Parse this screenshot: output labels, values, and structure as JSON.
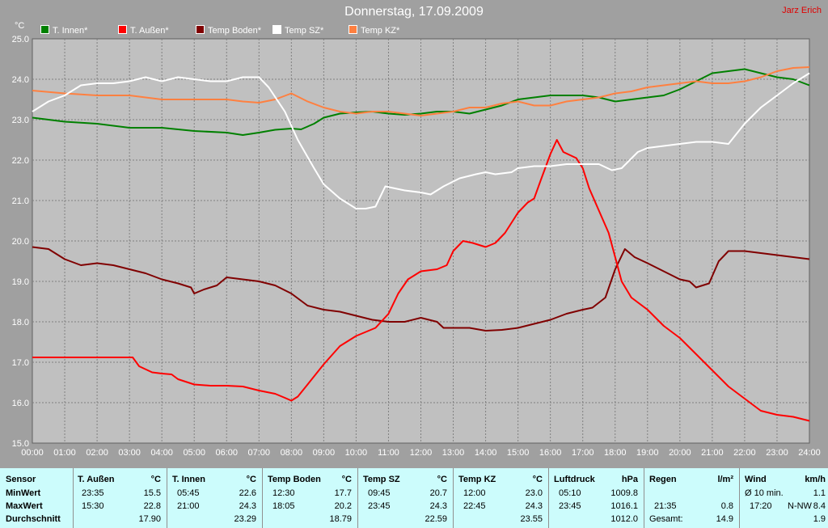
{
  "header": {
    "title": "Donnerstag, 17.09.2009",
    "author": "Jarz Erich",
    "y_unit": "°C"
  },
  "colors": {
    "background": "#a0a0a0",
    "plot_bg": "#c0c0c0",
    "grid": "#808080",
    "summary_bg": "#ccfcfc"
  },
  "chart_data": {
    "type": "line",
    "title": "Donnerstag, 17.09.2009",
    "ylabel": "°C",
    "ylim": [
      15.0,
      25.0
    ],
    "xlim": [
      "00:00",
      "24:00"
    ],
    "x_ticks": [
      "00:00",
      "01:00",
      "02:00",
      "03:00",
      "04:00",
      "05:00",
      "06:00",
      "07:00",
      "08:00",
      "09:00",
      "10:00",
      "11:00",
      "12:00",
      "13:00",
      "14:00",
      "15:00",
      "16:00",
      "17:00",
      "18:00",
      "19:00",
      "20:00",
      "21:00",
      "22:00",
      "23:00",
      "24:00"
    ],
    "y_ticks": [
      "15.0",
      "16.0",
      "17.0",
      "18.0",
      "19.0",
      "20.0",
      "21.0",
      "22.0",
      "23.0",
      "24.0",
      "25.0"
    ],
    "grid": true,
    "legend_position": "top-left",
    "series": [
      {
        "name": "T. Innen*",
        "color": "#008000",
        "points": [
          [
            0,
            23.05
          ],
          [
            1,
            22.95
          ],
          [
            2,
            22.9
          ],
          [
            3,
            22.8
          ],
          [
            4,
            22.8
          ],
          [
            5,
            22.72
          ],
          [
            6,
            22.68
          ],
          [
            6.5,
            22.62
          ],
          [
            7,
            22.68
          ],
          [
            7.5,
            22.75
          ],
          [
            8,
            22.78
          ],
          [
            8.3,
            22.76
          ],
          [
            8.7,
            22.9
          ],
          [
            9,
            23.05
          ],
          [
            9.5,
            23.15
          ],
          [
            10,
            23.18
          ],
          [
            10.5,
            23.2
          ],
          [
            11,
            23.15
          ],
          [
            11.5,
            23.12
          ],
          [
            12,
            23.15
          ],
          [
            12.5,
            23.2
          ],
          [
            13,
            23.2
          ],
          [
            13.5,
            23.15
          ],
          [
            14,
            23.25
          ],
          [
            14.5,
            23.35
          ],
          [
            15,
            23.5
          ],
          [
            15.5,
            23.55
          ],
          [
            16,
            23.6
          ],
          [
            16.5,
            23.6
          ],
          [
            17,
            23.6
          ],
          [
            17.5,
            23.55
          ],
          [
            18,
            23.45
          ],
          [
            18.5,
            23.5
          ],
          [
            19,
            23.55
          ],
          [
            19.5,
            23.6
          ],
          [
            20,
            23.75
          ],
          [
            20.5,
            23.95
          ],
          [
            21,
            24.15
          ],
          [
            21.5,
            24.2
          ],
          [
            22,
            24.25
          ],
          [
            22.5,
            24.15
          ],
          [
            23,
            24.05
          ],
          [
            23.5,
            24.0
          ],
          [
            24,
            23.85
          ]
        ]
      },
      {
        "name": "T. Außen*",
        "color": "#ff0000",
        "points": [
          [
            0,
            17.12
          ],
          [
            1,
            17.12
          ],
          [
            2,
            17.12
          ],
          [
            3,
            17.12
          ],
          [
            3.1,
            17.12
          ],
          [
            3.3,
            16.9
          ],
          [
            3.7,
            16.75
          ],
          [
            4,
            16.72
          ],
          [
            4.3,
            16.7
          ],
          [
            4.5,
            16.58
          ],
          [
            5,
            16.45
          ],
          [
            5.5,
            16.42
          ],
          [
            6,
            16.42
          ],
          [
            6.5,
            16.4
          ],
          [
            7,
            16.3
          ],
          [
            7.5,
            16.22
          ],
          [
            7.8,
            16.12
          ],
          [
            8,
            16.05
          ],
          [
            8.2,
            16.15
          ],
          [
            8.5,
            16.45
          ],
          [
            9,
            16.95
          ],
          [
            9.5,
            17.4
          ],
          [
            10,
            17.65
          ],
          [
            10.3,
            17.75
          ],
          [
            10.6,
            17.85
          ],
          [
            11,
            18.2
          ],
          [
            11.3,
            18.7
          ],
          [
            11.6,
            19.05
          ],
          [
            12,
            19.25
          ],
          [
            12.5,
            19.3
          ],
          [
            12.8,
            19.4
          ],
          [
            13,
            19.75
          ],
          [
            13.3,
            20.0
          ],
          [
            13.6,
            19.95
          ],
          [
            14,
            19.85
          ],
          [
            14.3,
            19.95
          ],
          [
            14.6,
            20.2
          ],
          [
            15,
            20.7
          ],
          [
            15.3,
            20.95
          ],
          [
            15.5,
            21.05
          ],
          [
            15.7,
            21.5
          ],
          [
            16,
            22.15
          ],
          [
            16.2,
            22.5
          ],
          [
            16.4,
            22.2
          ],
          [
            16.8,
            22.05
          ],
          [
            17,
            21.8
          ],
          [
            17.2,
            21.3
          ],
          [
            17.5,
            20.75
          ],
          [
            17.8,
            20.2
          ],
          [
            18,
            19.6
          ],
          [
            18.2,
            19.0
          ],
          [
            18.5,
            18.6
          ],
          [
            19,
            18.3
          ],
          [
            19.5,
            17.9
          ],
          [
            20,
            17.6
          ],
          [
            20.5,
            17.2
          ],
          [
            21,
            16.8
          ],
          [
            21.5,
            16.4
          ],
          [
            22,
            16.1
          ],
          [
            22.5,
            15.8
          ],
          [
            23,
            15.7
          ],
          [
            23.5,
            15.65
          ],
          [
            24,
            15.55
          ]
        ]
      },
      {
        "name": "Temp Boden*",
        "color": "#800000",
        "points": [
          [
            0,
            19.85
          ],
          [
            0.5,
            19.8
          ],
          [
            1,
            19.55
          ],
          [
            1.5,
            19.4
          ],
          [
            2,
            19.45
          ],
          [
            2.5,
            19.4
          ],
          [
            3,
            19.3
          ],
          [
            3.5,
            19.2
          ],
          [
            4,
            19.05
          ],
          [
            4.5,
            18.95
          ],
          [
            4.9,
            18.85
          ],
          [
            5,
            18.7
          ],
          [
            5.3,
            18.8
          ],
          [
            5.7,
            18.9
          ],
          [
            6,
            19.1
          ],
          [
            6.5,
            19.05
          ],
          [
            7,
            19.0
          ],
          [
            7.5,
            18.9
          ],
          [
            8,
            18.7
          ],
          [
            8.5,
            18.4
          ],
          [
            9,
            18.3
          ],
          [
            9.5,
            18.25
          ],
          [
            10,
            18.15
          ],
          [
            10.5,
            18.05
          ],
          [
            11,
            18.0
          ],
          [
            11.5,
            18.0
          ],
          [
            12,
            18.1
          ],
          [
            12.5,
            18.0
          ],
          [
            12.7,
            17.85
          ],
          [
            13,
            17.85
          ],
          [
            13.5,
            17.85
          ],
          [
            14,
            17.78
          ],
          [
            14.5,
            17.8
          ],
          [
            15,
            17.85
          ],
          [
            15.5,
            17.95
          ],
          [
            16,
            18.05
          ],
          [
            16.5,
            18.2
          ],
          [
            17,
            18.3
          ],
          [
            17.3,
            18.35
          ],
          [
            17.7,
            18.6
          ],
          [
            18,
            19.3
          ],
          [
            18.3,
            19.8
          ],
          [
            18.6,
            19.6
          ],
          [
            19,
            19.45
          ],
          [
            19.5,
            19.25
          ],
          [
            20,
            19.05
          ],
          [
            20.3,
            19.0
          ],
          [
            20.5,
            18.85
          ],
          [
            20.9,
            18.95
          ],
          [
            21.2,
            19.5
          ],
          [
            21.5,
            19.75
          ],
          [
            22,
            19.75
          ],
          [
            22.5,
            19.7
          ],
          [
            23,
            19.65
          ],
          [
            23.5,
            19.6
          ],
          [
            24,
            19.55
          ]
        ]
      },
      {
        "name": "Temp SZ*",
        "color": "#ffffff",
        "points": [
          [
            0,
            23.2
          ],
          [
            0.5,
            23.45
          ],
          [
            1,
            23.6
          ],
          [
            1.5,
            23.85
          ],
          [
            2,
            23.9
          ],
          [
            2.5,
            23.9
          ],
          [
            3,
            23.95
          ],
          [
            3.5,
            24.05
          ],
          [
            4,
            23.95
          ],
          [
            4.5,
            24.05
          ],
          [
            5,
            24.0
          ],
          [
            5.5,
            23.95
          ],
          [
            6,
            23.95
          ],
          [
            6.5,
            24.05
          ],
          [
            7,
            24.05
          ],
          [
            7.3,
            23.8
          ],
          [
            7.8,
            23.2
          ],
          [
            8.2,
            22.5
          ],
          [
            8.7,
            21.8
          ],
          [
            9,
            21.4
          ],
          [
            9.5,
            21.05
          ],
          [
            10,
            20.8
          ],
          [
            10.3,
            20.8
          ],
          [
            10.6,
            20.85
          ],
          [
            10.9,
            21.35
          ],
          [
            11.5,
            21.25
          ],
          [
            12,
            21.2
          ],
          [
            12.3,
            21.15
          ],
          [
            12.7,
            21.35
          ],
          [
            13.2,
            21.55
          ],
          [
            13.7,
            21.65
          ],
          [
            14,
            21.7
          ],
          [
            14.3,
            21.65
          ],
          [
            14.8,
            21.7
          ],
          [
            15,
            21.8
          ],
          [
            15.5,
            21.85
          ],
          [
            16,
            21.85
          ],
          [
            16.5,
            21.9
          ],
          [
            17,
            21.9
          ],
          [
            17.5,
            21.9
          ],
          [
            17.9,
            21.75
          ],
          [
            18.2,
            21.8
          ],
          [
            18.7,
            22.2
          ],
          [
            19,
            22.3
          ],
          [
            19.5,
            22.35
          ],
          [
            20,
            22.4
          ],
          [
            20.5,
            22.45
          ],
          [
            21,
            22.45
          ],
          [
            21.5,
            22.4
          ],
          [
            22,
            22.9
          ],
          [
            22.5,
            23.3
          ],
          [
            23,
            23.6
          ],
          [
            23.5,
            23.9
          ],
          [
            24,
            24.15
          ]
        ]
      },
      {
        "name": "Temp KZ*",
        "color": "#ff8040",
        "points": [
          [
            0,
            23.72
          ],
          [
            1,
            23.65
          ],
          [
            2,
            23.6
          ],
          [
            3,
            23.6
          ],
          [
            4,
            23.5
          ],
          [
            5,
            23.5
          ],
          [
            6,
            23.5
          ],
          [
            6.5,
            23.45
          ],
          [
            7,
            23.42
          ],
          [
            7.5,
            23.5
          ],
          [
            8,
            23.65
          ],
          [
            8.5,
            23.45
          ],
          [
            9,
            23.3
          ],
          [
            9.5,
            23.2
          ],
          [
            10,
            23.15
          ],
          [
            10.5,
            23.2
          ],
          [
            11,
            23.2
          ],
          [
            11.5,
            23.15
          ],
          [
            12,
            23.1
          ],
          [
            12.5,
            23.15
          ],
          [
            13,
            23.2
          ],
          [
            13.5,
            23.3
          ],
          [
            14,
            23.3
          ],
          [
            14.5,
            23.4
          ],
          [
            15,
            23.45
          ],
          [
            15.5,
            23.35
          ],
          [
            16,
            23.35
          ],
          [
            16.5,
            23.45
          ],
          [
            17,
            23.5
          ],
          [
            17.5,
            23.55
          ],
          [
            18,
            23.65
          ],
          [
            18.5,
            23.7
          ],
          [
            19,
            23.8
          ],
          [
            19.5,
            23.85
          ],
          [
            20,
            23.9
          ],
          [
            20.5,
            23.95
          ],
          [
            21,
            23.9
          ],
          [
            21.5,
            23.9
          ],
          [
            22,
            23.95
          ],
          [
            22.5,
            24.05
          ],
          [
            23,
            24.2
          ],
          [
            23.5,
            24.28
          ],
          [
            24,
            24.3
          ]
        ]
      }
    ]
  },
  "summary": {
    "row_labels": {
      "sensor": "Sensor",
      "min": "MinWert",
      "max": "MaxWert",
      "avg": "Durchschnitt"
    },
    "columns": [
      {
        "name": "T. Außen",
        "unit": "°C",
        "min_time": "23:35",
        "min": "15.5",
        "max_time": "15:30",
        "max": "22.8",
        "avg": "17.90"
      },
      {
        "name": "T. Innen",
        "unit": "°C",
        "min_time": "05:45",
        "min": "22.6",
        "max_time": "21:00",
        "max": "24.3",
        "avg": "23.29"
      },
      {
        "name": "Temp Boden",
        "unit": "°C",
        "min_time": "12:30",
        "min": "17.7",
        "max_time": "18:05",
        "max": "20.2",
        "avg": "18.79"
      },
      {
        "name": "Temp SZ",
        "unit": "°C",
        "min_time": "09:45",
        "min": "20.7",
        "max_time": "23:45",
        "max": "24.3",
        "avg": "22.59"
      },
      {
        "name": "Temp KZ",
        "unit": "°C",
        "min_time": "12:00",
        "min": "23.0",
        "max_time": "22:45",
        "max": "24.3",
        "avg": "23.55"
      },
      {
        "name": "Luftdruck",
        "unit": "hPa",
        "min_time": "05:10",
        "min": "1009.8",
        "max_time": "23:45",
        "max": "1016.1",
        "avg": "1012.0"
      }
    ],
    "regen": {
      "name": "Regen",
      "unit": "l/m²",
      "time": "21:35",
      "value": "0.8",
      "total_label": "Gesamt:",
      "total": "14.9"
    },
    "wind": {
      "name": "Wind",
      "unit": "km/h",
      "avg_label": "Ø 10 min.",
      "avg": "1.1",
      "max_time": "17:20",
      "max_dir": "N-NW",
      "max": "8.4",
      "day_avg": "1.9"
    }
  }
}
